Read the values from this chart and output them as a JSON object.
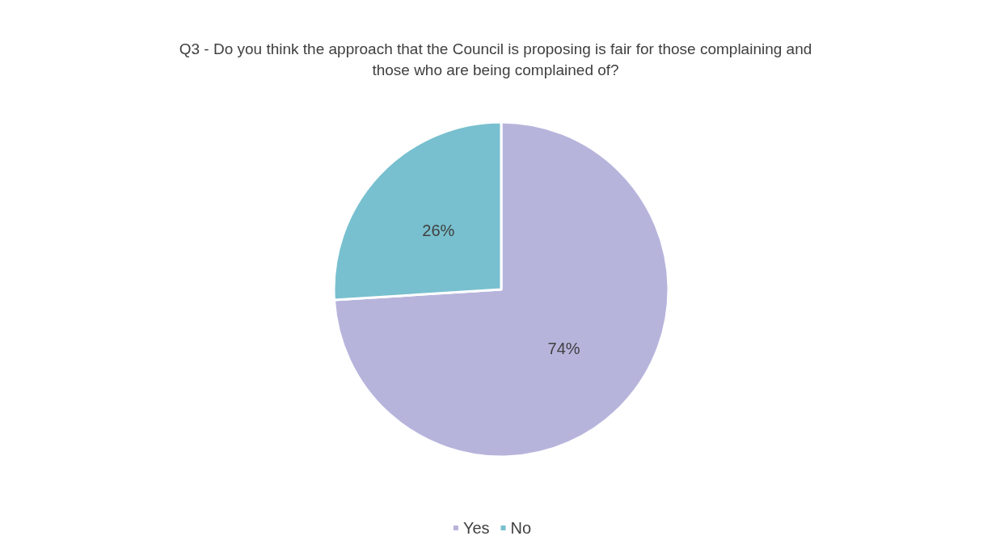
{
  "chart_data": {
    "type": "pie",
    "title": "Q3 - Do you think the approach that the Council is proposing is fair for those complaining and\nthose who are being complained of?",
    "categories": [
      "Yes",
      "No"
    ],
    "values": [
      74,
      26
    ],
    "colors": [
      "#b7b4dc",
      "#78c0cf"
    ],
    "value_labels": [
      "74%",
      "26%"
    ],
    "legend": "bottom"
  }
}
